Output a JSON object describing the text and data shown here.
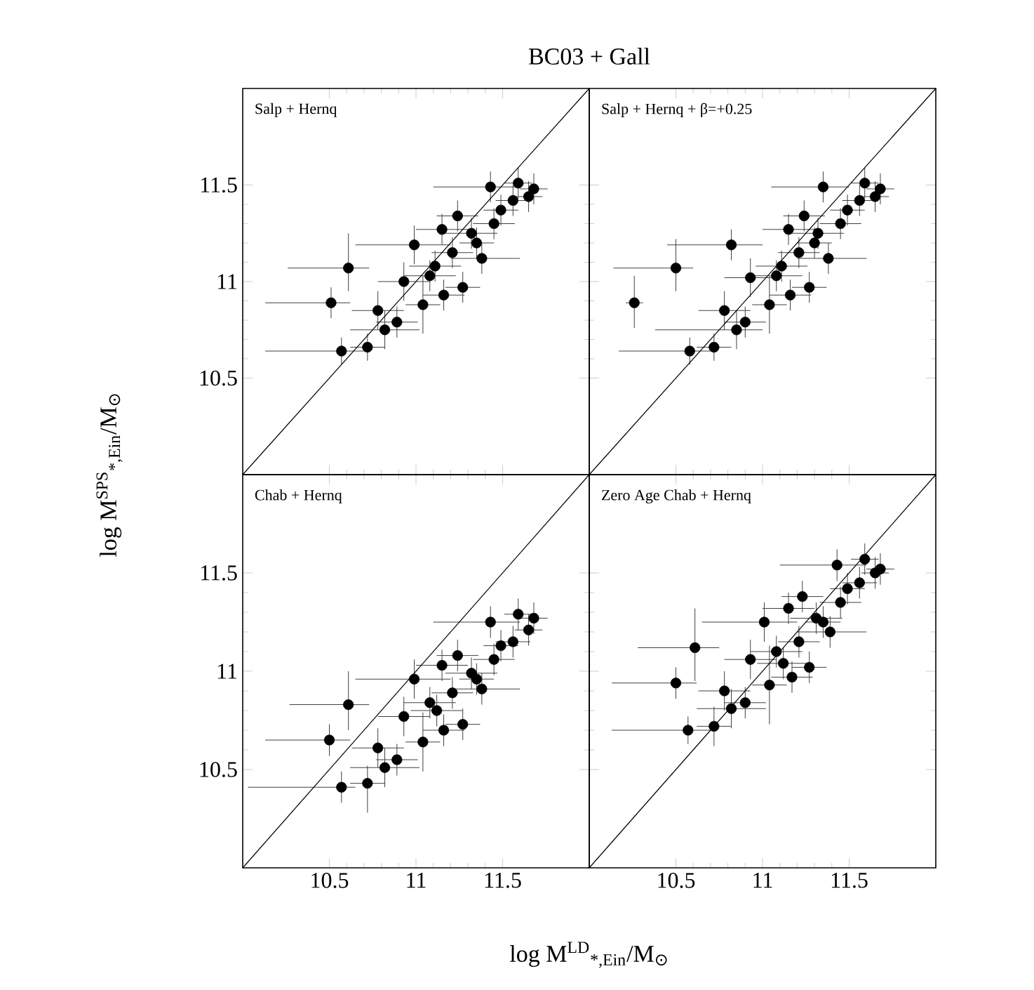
{
  "chart_data": [
    {
      "type": "scatter",
      "title": "BC03 + Gall",
      "subtitle": "Salp + Hernq",
      "ylabel": "log M$^{SPS}$$_{*,Ein}$/M$_{⊙}$",
      "xlim": [
        10,
        12
      ],
      "ylim": [
        10,
        12
      ],
      "xticks": [
        10.5,
        11,
        11.5
      ],
      "yticks": [
        10.5,
        11,
        11.5
      ],
      "tick_labels": "y",
      "series": [
        {
          "type": "scatter",
          "marker": "circle",
          "color": "#000000",
          "x": [
            10.61,
            10.51,
            10.57,
            10.72,
            10.78,
            10.89,
            10.82,
            10.93,
            11.04,
            10.99,
            11.16,
            11.27,
            11.08,
            11.15,
            11.24,
            11.32,
            11.38,
            11.43,
            11.45,
            11.49,
            11.59,
            11.65,
            11.68,
            11.56,
            11.21,
            11.11,
            11.35
          ],
          "values": [
            11.07,
            10.89,
            10.64,
            10.66,
            10.85,
            10.79,
            10.75,
            11.0,
            10.88,
            11.19,
            10.93,
            10.97,
            11.03,
            11.27,
            11.34,
            11.25,
            11.12,
            11.49,
            11.3,
            11.37,
            11.51,
            11.44,
            11.48,
            11.42,
            11.15,
            11.08,
            11.2
          ],
          "xerrors": [
            [
              10.26,
              10.73
            ],
            [
              10.13,
              10.62
            ],
            [
              10.13,
              10.7
            ],
            0.1,
            0.15,
            0.12,
            0.2,
            0.15,
            0.1,
            [
              10.65,
              11.2
            ],
            0.12,
            0.1,
            0.15,
            0.15,
            0.12,
            0.15,
            [
              11.2,
              11.6
            ],
            [
              11.1,
              11.6
            ],
            0.12,
            0.1,
            0.08,
            0.08,
            0.08,
            0.1,
            0.12,
            0.15,
            0.1
          ],
          "errors": [
            [
              10.95,
              11.25
            ],
            0.08,
            0.07,
            0.07,
            0.1,
            0.08,
            0.1,
            0.1,
            0.15,
            0.1,
            0.08,
            0.08,
            0.08,
            0.08,
            0.08,
            0.08,
            0.08,
            0.08,
            0.08,
            0.08,
            0.08,
            0.08,
            0.08,
            0.08,
            0.08,
            0.08,
            0.08
          ]
        },
        {
          "type": "line",
          "marker": "none",
          "color": "#000000",
          "x": [
            10,
            12
          ],
          "values": [
            10,
            12
          ]
        }
      ]
    },
    {
      "type": "scatter",
      "subtitle": "Salp + Hernq + β=+0.25",
      "xlim": [
        10,
        12
      ],
      "ylim": [
        10,
        12
      ],
      "xticks": [
        10.5,
        11,
        11.5
      ],
      "yticks": [
        10.5,
        11,
        11.5
      ],
      "tick_labels": false,
      "series": [
        {
          "type": "scatter",
          "marker": "circle",
          "color": "#000000",
          "x": [
            10.26,
            10.5,
            10.58,
            10.72,
            10.78,
            10.9,
            10.85,
            10.93,
            11.04,
            10.82,
            11.16,
            11.27,
            11.08,
            11.15,
            11.24,
            11.32,
            11.38,
            11.35,
            11.45,
            11.49,
            11.59,
            11.65,
            11.68,
            11.56,
            11.21,
            11.11,
            11.3
          ],
          "values": [
            10.89,
            11.07,
            10.64,
            10.66,
            10.85,
            10.79,
            10.75,
            11.02,
            10.88,
            11.19,
            10.93,
            10.97,
            11.03,
            11.27,
            11.34,
            11.25,
            11.12,
            11.49,
            11.3,
            11.37,
            11.51,
            11.44,
            11.48,
            11.42,
            11.15,
            11.08,
            11.2
          ],
          "xerrors": [
            0.05,
            [
              10.14,
              10.6
            ],
            [
              10.17,
              10.7
            ],
            0.1,
            0.15,
            0.12,
            [
              10.38,
              11.0
            ],
            0.15,
            0.1,
            [
              10.45,
              11.0
            ],
            0.12,
            0.1,
            0.15,
            0.15,
            0.12,
            0.15,
            [
              11.2,
              11.6
            ],
            [
              11.05,
              11.5
            ],
            0.12,
            0.1,
            0.08,
            0.08,
            0.08,
            0.1,
            0.12,
            0.15,
            0.1
          ],
          "errors": [
            [
              10.76,
              11.03
            ],
            [
              10.95,
              11.22
            ],
            0.07,
            0.07,
            0.1,
            0.08,
            0.1,
            0.1,
            0.15,
            0.08,
            0.08,
            0.08,
            0.08,
            0.08,
            0.08,
            0.08,
            0.08,
            0.08,
            0.08,
            0.08,
            0.08,
            0.08,
            0.08,
            0.08,
            0.08,
            0.08,
            0.08
          ]
        },
        {
          "type": "line",
          "marker": "none",
          "color": "#000000",
          "x": [
            10,
            12
          ],
          "values": [
            10,
            12
          ]
        }
      ]
    },
    {
      "type": "scatter",
      "subtitle": "Chab + Hernq",
      "xlabel": "log M$^{LD}$$_{*,Ein}$/M$_{⊙}$",
      "xlim": [
        10,
        12
      ],
      "ylim": [
        10,
        12
      ],
      "xticks": [
        10.5,
        11,
        11.5
      ],
      "yticks": [
        10.5,
        11,
        11.5
      ],
      "series": [
        {
          "type": "scatter",
          "marker": "circle",
          "color": "#000000",
          "x": [
            10.61,
            10.5,
            10.57,
            10.72,
            10.78,
            10.89,
            10.82,
            10.93,
            11.04,
            10.99,
            11.16,
            11.27,
            11.08,
            11.15,
            11.24,
            11.32,
            11.38,
            11.43,
            11.45,
            11.49,
            11.59,
            11.65,
            11.68,
            11.56,
            11.21,
            11.12,
            11.35
          ],
          "values": [
            10.83,
            10.65,
            10.41,
            10.43,
            10.61,
            10.55,
            10.51,
            10.77,
            10.64,
            10.96,
            10.7,
            10.73,
            10.84,
            11.03,
            11.08,
            10.99,
            10.91,
            11.25,
            11.06,
            11.13,
            11.29,
            11.21,
            11.27,
            11.15,
            10.89,
            10.8,
            10.96
          ],
          "xerrors": [
            [
              10.27,
              10.73
            ],
            [
              10.13,
              10.62
            ],
            [
              10.03,
              10.65
            ],
            0.1,
            0.15,
            0.12,
            0.2,
            0.15,
            0.1,
            [
              10.65,
              11.2
            ],
            0.12,
            0.1,
            0.15,
            0.15,
            0.12,
            0.15,
            [
              11.2,
              11.6
            ],
            [
              11.1,
              11.6
            ],
            0.12,
            0.1,
            0.08,
            0.08,
            0.08,
            0.1,
            0.12,
            0.15,
            0.1
          ],
          "errors": [
            [
              10.7,
              11.0
            ],
            0.08,
            0.08,
            [
              10.28,
              10.52
            ],
            0.1,
            0.08,
            0.1,
            0.1,
            0.15,
            0.1,
            0.08,
            0.08,
            0.08,
            0.08,
            0.08,
            0.08,
            0.08,
            0.08,
            0.08,
            0.08,
            0.08,
            0.08,
            0.08,
            0.08,
            0.08,
            0.08,
            0.08
          ]
        },
        {
          "type": "line",
          "marker": "none",
          "color": "#000000",
          "x": [
            10,
            12
          ],
          "values": [
            10,
            12
          ]
        }
      ]
    },
    {
      "type": "scatter",
      "subtitle": "Zero Age Chab + Hernq",
      "xlim": [
        10,
        12
      ],
      "ylim": [
        10,
        12
      ],
      "xticks": [
        10.5,
        11,
        11.5
      ],
      "yticks": [
        10.5,
        11,
        11.5
      ],
      "tick_labels": "x",
      "series": [
        {
          "type": "scatter",
          "marker": "circle",
          "color": "#000000",
          "x": [
            10.61,
            10.5,
            10.57,
            10.72,
            10.78,
            10.9,
            10.82,
            10.93,
            11.04,
            11.01,
            11.17,
            11.27,
            11.08,
            11.15,
            11.23,
            11.31,
            11.39,
            11.43,
            11.45,
            11.49,
            11.59,
            11.65,
            11.68,
            11.56,
            11.21,
            11.12,
            11.35
          ],
          "values": [
            11.12,
            10.94,
            10.7,
            10.72,
            10.9,
            10.84,
            10.81,
            11.06,
            10.93,
            11.25,
            10.97,
            11.02,
            11.1,
            11.32,
            11.38,
            11.27,
            11.2,
            11.54,
            11.35,
            11.42,
            11.57,
            11.5,
            11.52,
            11.45,
            11.15,
            11.04,
            11.25
          ],
          "xerrors": [
            [
              10.28,
              10.75
            ],
            [
              10.13,
              10.62
            ],
            [
              10.13,
              10.7
            ],
            0.1,
            0.15,
            0.12,
            0.2,
            0.15,
            0.1,
            [
              10.65,
              11.2
            ],
            0.12,
            0.1,
            0.15,
            0.15,
            0.12,
            0.15,
            [
              11.2,
              11.6
            ],
            [
              11.1,
              11.6
            ],
            0.12,
            0.1,
            0.08,
            0.08,
            0.08,
            0.1,
            0.12,
            0.15,
            0.1
          ],
          "errors": [
            [
              10.95,
              11.32
            ],
            0.08,
            0.07,
            0.1,
            0.1,
            0.08,
            0.1,
            0.1,
            0.2,
            0.1,
            0.08,
            0.08,
            0.08,
            0.08,
            0.08,
            0.08,
            0.08,
            0.08,
            0.08,
            0.08,
            0.08,
            0.08,
            0.08,
            0.08,
            0.08,
            0.08,
            0.08
          ]
        },
        {
          "type": "line",
          "marker": "none",
          "color": "#000000",
          "x": [
            10,
            12
          ],
          "values": [
            10,
            12
          ]
        }
      ]
    }
  ]
}
